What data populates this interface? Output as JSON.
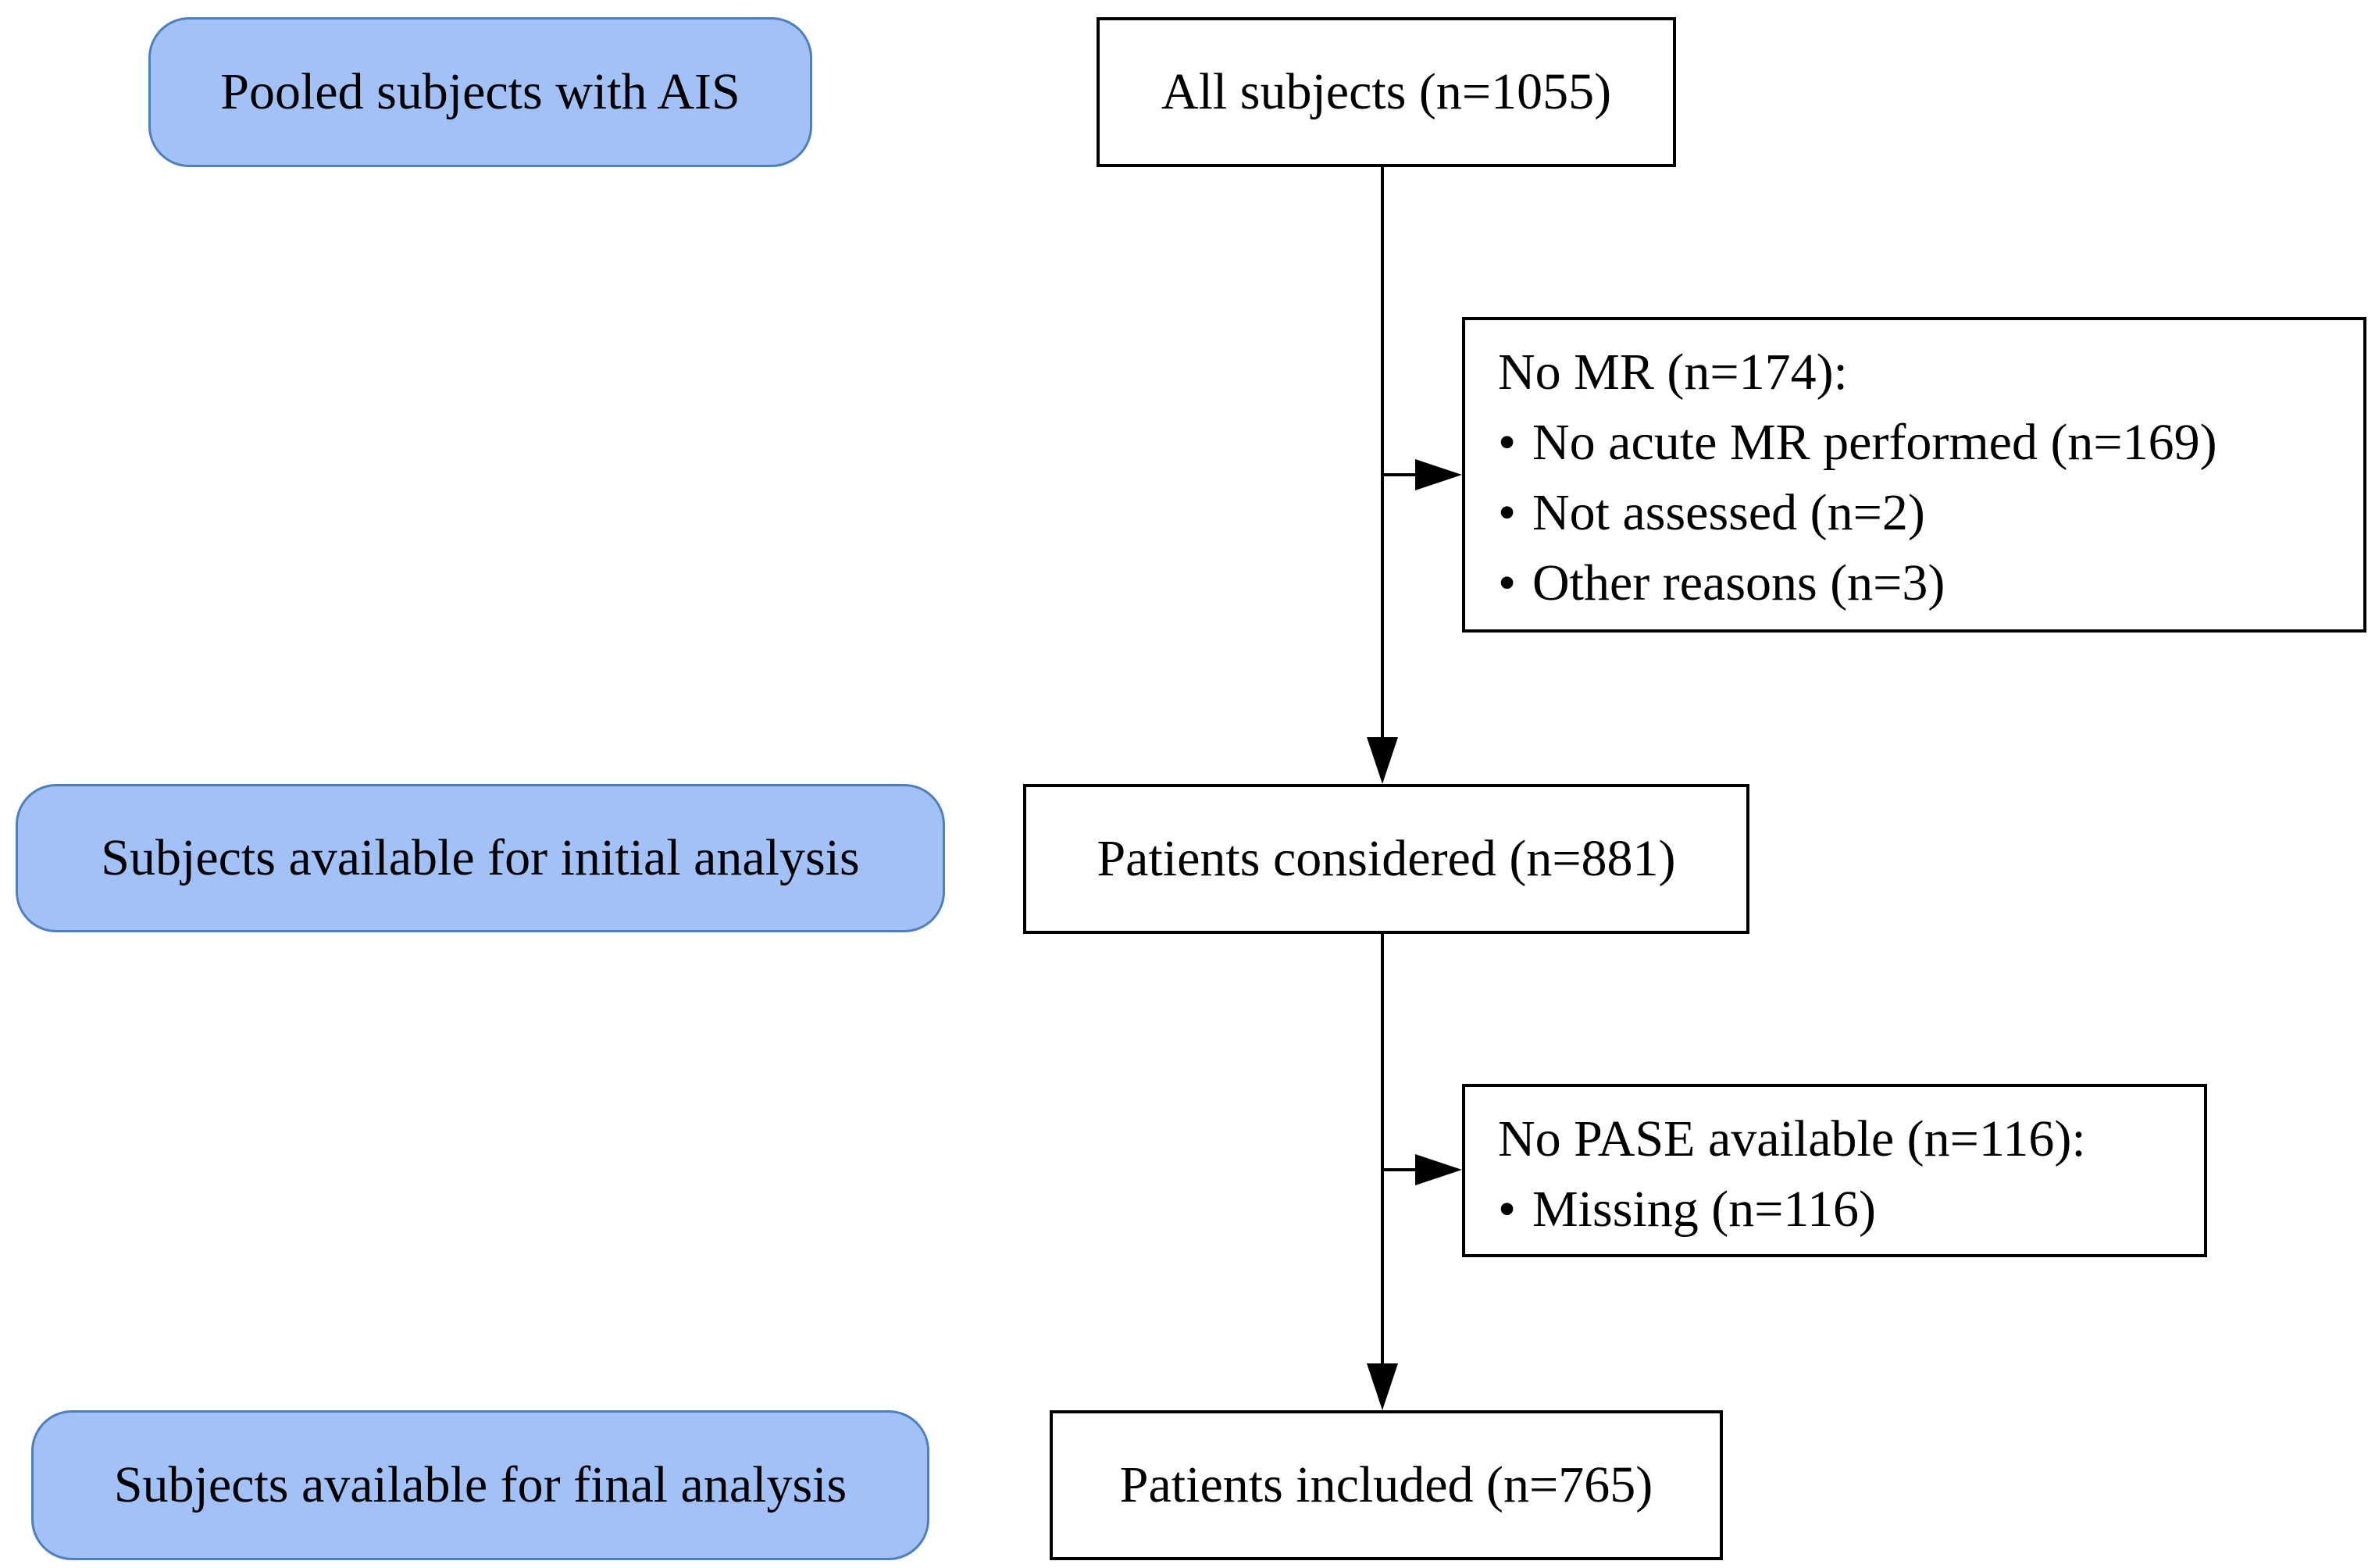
{
  "phases": {
    "pooled": "Pooled subjects with AIS",
    "initial": "Subjects available for initial analysis",
    "final": "Subjects available for final analysis"
  },
  "flow": {
    "all_subjects": "All subjects (n=1055)",
    "considered": "Patients considered (n=881)",
    "included": "Patients included (n=765)"
  },
  "exclusions": [
    {
      "title": "No MR (n=174):",
      "reasons": [
        "No acute MR performed (n=169)",
        "Not assessed (n=2)",
        "Other reasons (n=3)"
      ]
    },
    {
      "title": "No PASE available (n=116):",
      "reasons": [
        "Missing (n=116)"
      ]
    }
  ],
  "bullet_glyph": "•",
  "colors": {
    "phase_fill": "#a2c1f7",
    "phase_border": "#4e7fbf",
    "box_border": "#000000"
  }
}
